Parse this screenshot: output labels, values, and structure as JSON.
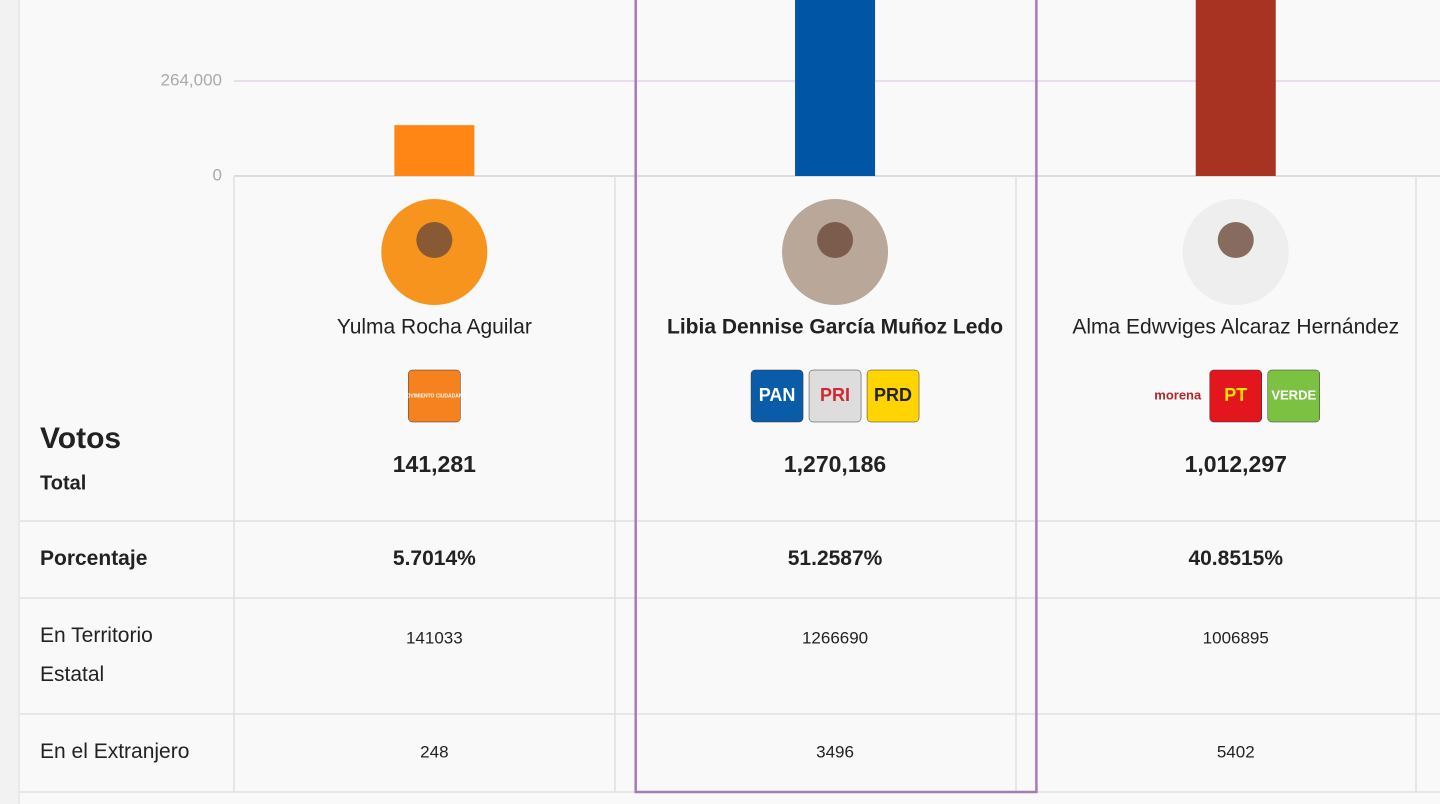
{
  "chart_data": {
    "type": "bar",
    "categories": [
      "Yulma Rocha Aguilar",
      "Libia Dennise García Muñoz Ledo",
      "Alma Edwviges Alcaraz Hernández"
    ],
    "values": [
      141281,
      1270186,
      1012297
    ],
    "value_labels": [
      "141,281",
      "1,270,186",
      "1,012,297"
    ],
    "colors": [
      "#ff8514",
      "#0055a5",
      "#a93322"
    ],
    "ylim": [
      0,
      489000
    ],
    "yticks": [
      0,
      {
        "value": 264000,
        "label": "264,000"
      }
    ],
    "grid": true,
    "highlight": 1
  },
  "logos": [
    [
      {
        "text": "MOVIMIENTO CIUDADANO",
        "bg": "#f5821f",
        "fg": "#ffffff"
      }
    ],
    [
      {
        "text": "PAN",
        "bg": "#0a5ca8",
        "fg": "#ffffff"
      },
      {
        "text": "PRI",
        "bg": "#dddddd",
        "fg": "#d3262e"
      },
      {
        "text": "PRD",
        "bg": "#ffd400",
        "fg": "#222222"
      }
    ],
    [
      {
        "text": "morena",
        "bg": "none",
        "fg": "#b0272a"
      },
      {
        "text": "PT",
        "bg": "#e3161d",
        "fg": "#ffe400"
      },
      {
        "text": "VERDE",
        "bg": "#7dc142",
        "fg": "#ffffff"
      }
    ]
  ],
  "table": {
    "header": "Votos",
    "total_label": "Total",
    "rows": [
      {
        "label": "Porcentaje",
        "cells": [
          "5.7014%",
          "51.2587%",
          "40.8515%"
        ],
        "bold": true
      },
      {
        "label": "En Territorio Estatal",
        "cells": [
          "141033",
          "1266690",
          "1006895"
        ],
        "bold": false
      },
      {
        "label": "En el Extranjero",
        "cells": [
          "248",
          "3496",
          "5402"
        ],
        "bold": false
      }
    ]
  }
}
